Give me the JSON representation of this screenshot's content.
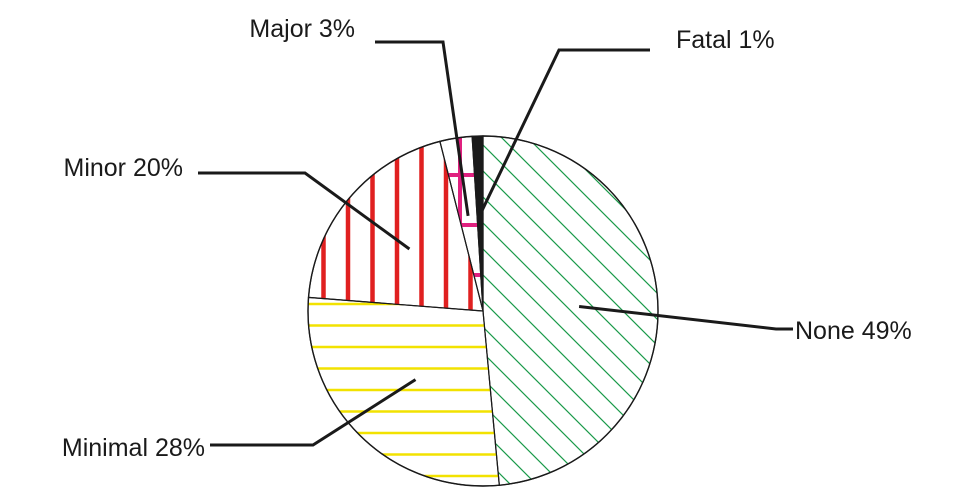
{
  "chart_data": {
    "type": "pie",
    "title": "",
    "slices": [
      {
        "name": "None",
        "label": "None 49%",
        "value": 49,
        "color": "#1a9a4a",
        "pattern": "diagonal"
      },
      {
        "name": "Minimal",
        "label": "Minimal 28%",
        "value": 28,
        "color": "#f2e200",
        "pattern": "horizontal"
      },
      {
        "name": "Minor",
        "label": "Minor 20%",
        "value": 20,
        "color": "#e02020",
        "pattern": "vertical"
      },
      {
        "name": "Major",
        "label": "Major 3%",
        "value": 3,
        "color": "#e0207f",
        "pattern": "cross"
      },
      {
        "name": "Fatal",
        "label": "Fatal 1%",
        "value": 1,
        "color": "#1a1a1a",
        "pattern": "solid"
      }
    ],
    "start_direction": "12 o'clock",
    "order": "clockwise",
    "legend": "none (callout labels)"
  }
}
